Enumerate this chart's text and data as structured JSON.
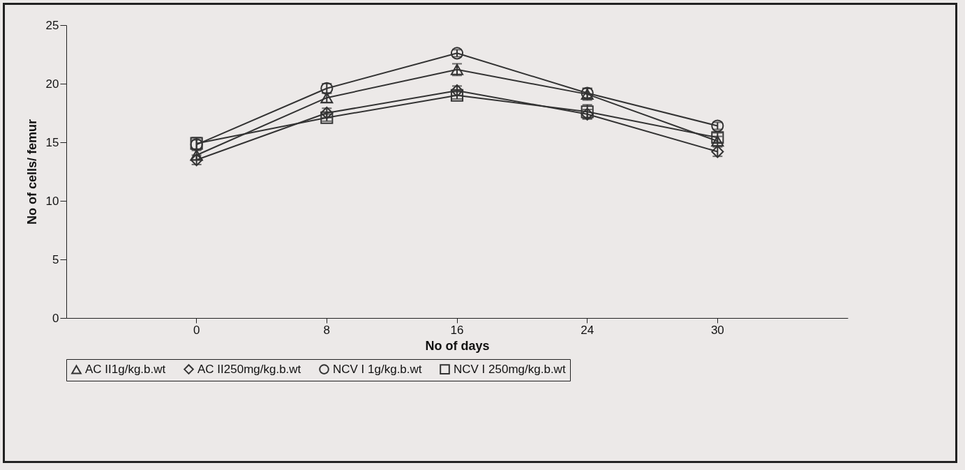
{
  "chart_data": {
    "type": "line",
    "xlabel": "No of days",
    "ylabel": "No of cells/ femur",
    "categories": [
      "0",
      "8",
      "16",
      "24",
      "30"
    ],
    "ylim": [
      0,
      25
    ],
    "yticks": [
      0,
      5,
      10,
      15,
      20,
      25
    ],
    "legend": "bottom",
    "grid": false,
    "line_style": "solid",
    "series": [
      {
        "name": "AC II1g/kg.b.wt",
        "color": "#333333",
        "marker": "triangle",
        "values": [
          13.9,
          18.8,
          21.2,
          19.1,
          15.1
        ],
        "errors": [
          0.4,
          0.4,
          0.5,
          0.5,
          0.4
        ]
      },
      {
        "name": "AC II250mg/kg.b.wt",
        "color": "#333333",
        "marker": "diamond",
        "values": [
          13.5,
          17.5,
          19.4,
          17.4,
          14.2
        ],
        "errors": [
          0.4,
          0.4,
          0.4,
          0.4,
          0.4
        ]
      },
      {
        "name": "NCV I 1g/kg.b.wt",
        "color": "#333333",
        "marker": "circle",
        "values": [
          14.8,
          19.6,
          22.6,
          19.2,
          16.4
        ],
        "errors": [
          0.4,
          0.4,
          0.3,
          0.4,
          0.3
        ]
      },
      {
        "name": "NCV I 250mg/kg.b.wt",
        "color": "#333333",
        "marker": "square",
        "values": [
          14.9,
          17.1,
          19.0,
          17.6,
          15.4
        ],
        "errors": [
          0.5,
          0.3,
          0.3,
          0.6,
          0.4
        ]
      }
    ]
  }
}
